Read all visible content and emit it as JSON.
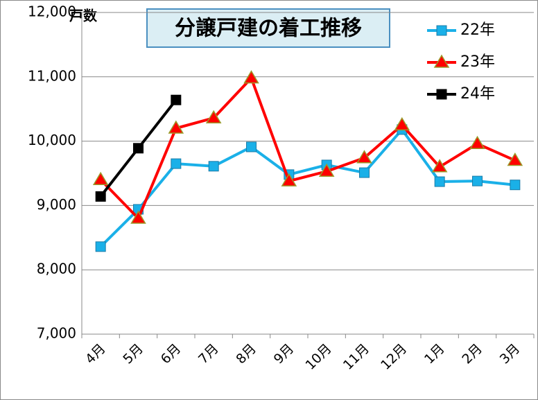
{
  "chart_data": {
    "type": "line",
    "title": "分譲戸建の着工推移",
    "ylabel": "戸数",
    "categories": [
      "4月",
      "5月",
      "6月",
      "7月",
      "8月",
      "9月",
      "10月",
      "11月",
      "12月",
      "1月",
      "2月",
      "3月"
    ],
    "series": [
      {
        "name": "22年",
        "color": "#1ab0e8",
        "marker": "square",
        "values": [
          8360,
          8940,
          9650,
          9610,
          9910,
          9480,
          9630,
          9510,
          10180,
          9370,
          9380,
          9320
        ]
      },
      {
        "name": "23年",
        "color": "#ff0000",
        "marker": "triangle",
        "values": [
          9400,
          8800,
          10200,
          10360,
          10980,
          9380,
          9530,
          9740,
          10250,
          9600,
          9960,
          9700
        ]
      },
      {
        "name": "24年",
        "color": "#000000",
        "marker": "square",
        "values": [
          9140,
          9890,
          10640,
          null,
          null,
          null,
          null,
          null,
          null,
          null,
          null,
          null
        ]
      }
    ],
    "ylim": [
      7000,
      12000
    ],
    "yticks": [
      {
        "value": 7000,
        "label": "7,000"
      },
      {
        "value": 8000,
        "label": "8,000"
      },
      {
        "value": 9000,
        "label": "9,000"
      },
      {
        "value": 10000,
        "label": "10,000"
      },
      {
        "value": 11000,
        "label": "11,000"
      },
      {
        "value": 12000,
        "label": "12,000"
      }
    ],
    "grid": true,
    "legend": "upper right"
  }
}
